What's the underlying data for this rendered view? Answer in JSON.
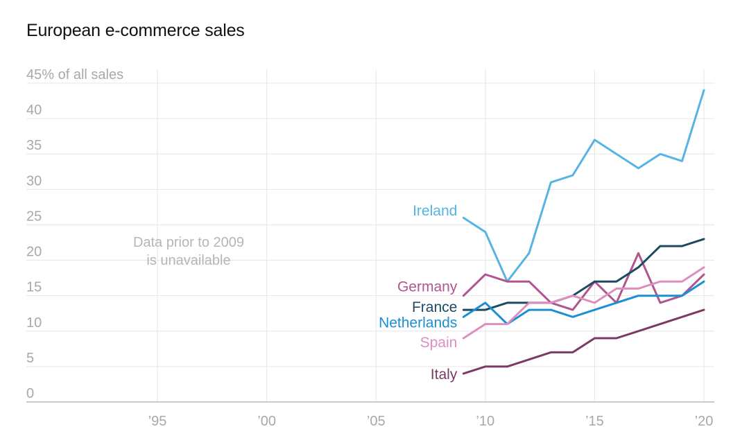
{
  "chart_data": {
    "type": "line",
    "title": "European e-commerce sales",
    "xlabel": "",
    "ylabel": "% of all sales",
    "xlim": [
      1989,
      2020.5
    ],
    "ylim": [
      0,
      45
    ],
    "y_ticks": [
      {
        "value": 0,
        "label": "0"
      },
      {
        "value": 5,
        "label": "5"
      },
      {
        "value": 10,
        "label": "10"
      },
      {
        "value": 15,
        "label": "15"
      },
      {
        "value": 20,
        "label": "20"
      },
      {
        "value": 25,
        "label": "25"
      },
      {
        "value": 30,
        "label": "30"
      },
      {
        "value": 35,
        "label": "35"
      },
      {
        "value": 40,
        "label": "40"
      },
      {
        "value": 45,
        "label": "45% of all sales"
      }
    ],
    "x_ticks": [
      {
        "value": 1995,
        "label": "’95"
      },
      {
        "value": 2000,
        "label": "’00"
      },
      {
        "value": 2005,
        "label": "’05"
      },
      {
        "value": 2010,
        "label": "’10"
      },
      {
        "value": 2015,
        "label": "’15"
      },
      {
        "value": 2020,
        "label": "’20"
      }
    ],
    "grid": true,
    "annotation": {
      "lines": [
        "Data prior to 2009",
        "is unavailable"
      ],
      "x": 1990.3,
      "y": 21
    },
    "series": [
      {
        "name": "Ireland",
        "color": "#56b4e2",
        "x": [
          2009,
          2010,
          2011,
          2012,
          2013,
          2014,
          2015,
          2016,
          2017,
          2018,
          2019,
          2020
        ],
        "values": [
          26,
          24,
          17,
          21,
          31,
          32,
          37,
          35,
          33,
          35,
          34,
          44
        ],
        "label_y": 27
      },
      {
        "name": "Germany",
        "color": "#b0558e",
        "x": [
          2009,
          2010,
          2011,
          2012,
          2013,
          2014,
          2015,
          2016,
          2017,
          2018,
          2019,
          2020
        ],
        "values": [
          15,
          18,
          17,
          17,
          14,
          13,
          17,
          14,
          21,
          14,
          15,
          18
        ],
        "label_y": 16.3
      },
      {
        "name": "France",
        "color": "#1b4a62",
        "x": [
          2009,
          2010,
          2011,
          2012,
          2013,
          2014,
          2015,
          2016,
          2017,
          2018,
          2019,
          2020
        ],
        "values": [
          13,
          13,
          14,
          14,
          14,
          15,
          17,
          17,
          19,
          22,
          22,
          23
        ],
        "label_y": 13.4
      },
      {
        "name": "Netherlands",
        "color": "#1a8fd6",
        "x": [
          2009,
          2010,
          2011,
          2012,
          2013,
          2014,
          2015,
          2016,
          2017,
          2018,
          2019,
          2020
        ],
        "values": [
          12,
          14,
          11,
          13,
          13,
          12,
          13,
          14,
          15,
          15,
          15,
          17
        ],
        "label_y": 11.2
      },
      {
        "name": "Spain",
        "color": "#dc8fbd",
        "x": [
          2009,
          2010,
          2011,
          2012,
          2013,
          2014,
          2015,
          2016,
          2017,
          2018,
          2019,
          2020
        ],
        "values": [
          9,
          11,
          11,
          14,
          14,
          15,
          14,
          16,
          16,
          17,
          17,
          19
        ],
        "label_y": 8.4
      },
      {
        "name": "Italy",
        "color": "#7a3a63",
        "x": [
          2009,
          2010,
          2011,
          2012,
          2013,
          2014,
          2015,
          2016,
          2017,
          2018,
          2019,
          2020
        ],
        "values": [
          4,
          5,
          5,
          6,
          7,
          7,
          9,
          9,
          10,
          11,
          12,
          13
        ],
        "label_y": 3.9
      }
    ]
  }
}
